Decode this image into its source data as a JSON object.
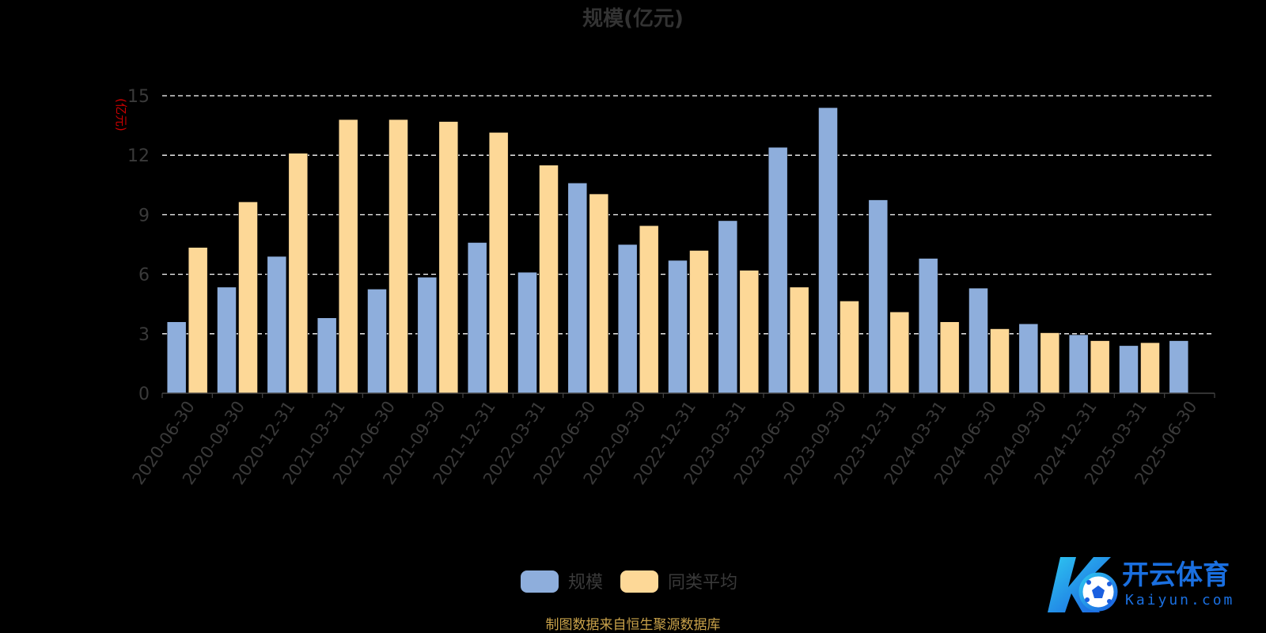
{
  "chart_data": {
    "type": "bar",
    "title": "规模(亿元)",
    "ylabel": "(亿元)",
    "xlabel": "",
    "ylim": [
      0,
      15
    ],
    "yticks": [
      0,
      3,
      6,
      9,
      12,
      15
    ],
    "grid": true,
    "legend_position": "bottom-center",
    "categories": [
      "2020-06-30",
      "2020-09-30",
      "2020-12-31",
      "2021-03-31",
      "2021-06-30",
      "2021-09-30",
      "2021-12-31",
      "2022-03-31",
      "2022-06-30",
      "2022-09-30",
      "2022-12-31",
      "2023-03-31",
      "2023-06-30",
      "2023-09-30",
      "2023-12-31",
      "2024-03-31",
      "2024-06-30",
      "2024-09-30",
      "2024-12-31",
      "2025-03-31",
      "2025-06-30"
    ],
    "series": [
      {
        "name": "规模",
        "color": "#8eaedc",
        "values": [
          3.6,
          5.35,
          6.9,
          3.8,
          5.25,
          5.85,
          7.6,
          6.1,
          10.6,
          7.5,
          6.7,
          8.7,
          12.4,
          14.4,
          9.75,
          6.8,
          5.3,
          3.5,
          2.95,
          2.4,
          2.65
        ]
      },
      {
        "name": "同类平均",
        "color": "#fdd897",
        "values": [
          7.35,
          9.65,
          12.1,
          13.8,
          13.8,
          13.7,
          13.15,
          11.5,
          10.05,
          8.45,
          7.2,
          6.2,
          5.35,
          4.65,
          4.1,
          3.6,
          3.25,
          3.05,
          2.65,
          2.55,
          null
        ]
      }
    ]
  },
  "footer": {
    "source_note": "制图数据来自恒生聚源数据库"
  },
  "watermark": {
    "brand_cn": "开云体育",
    "brand_url": "Kaiyun.com"
  },
  "colors": {
    "background": "#000000",
    "axis_text": "#3a3a3a",
    "title_text": "#333333",
    "ylabel_text": "#cc0000",
    "grid": "#ffffff",
    "footer_text": "#c9a24a",
    "logo_blue": "#1a6fe0",
    "logo_cyan": "#2ec7f0"
  }
}
